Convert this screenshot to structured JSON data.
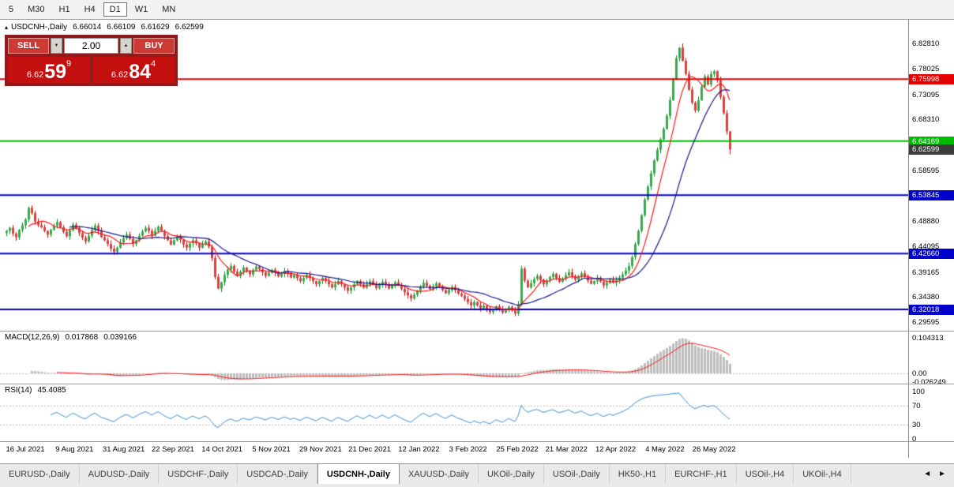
{
  "toolbar": {
    "timeframes": [
      {
        "label": "5",
        "active": false
      },
      {
        "label": "M30",
        "active": false
      },
      {
        "label": "H1",
        "active": false
      },
      {
        "label": "H4",
        "active": false
      },
      {
        "label": "D1",
        "active": true
      },
      {
        "label": "W1",
        "active": false
      },
      {
        "label": "MN",
        "active": false
      }
    ]
  },
  "chart_info": {
    "collapse_glyph": "▴",
    "symbol": "USDCNH-,Daily",
    "open": "6.66014",
    "high": "6.66109",
    "low": "6.61629",
    "close": "6.62599"
  },
  "trade_panel": {
    "sell_label": "SELL",
    "buy_label": "BUY",
    "volume": "2.00",
    "volume_down_glyph": "▼",
    "volume_up_glyph": "▲",
    "bid_small": "6.62",
    "bid_big": "59",
    "bid_sup": "9",
    "ask_small": "6.62",
    "ask_big": "84",
    "ask_sup": "4"
  },
  "price_axis": {
    "ticks": [
      {
        "label": "6.82810",
        "value": 6.8281
      },
      {
        "label": "6.78025",
        "value": 6.78025
      },
      {
        "label": "6.73095",
        "value": 6.73095
      },
      {
        "label": "6.68310",
        "value": 6.6831
      },
      {
        "label": "6.58595",
        "value": 6.58595
      },
      {
        "label": "6.48880",
        "value": 6.4888
      },
      {
        "label": "6.44095",
        "value": 6.44095
      },
      {
        "label": "6.39165",
        "value": 6.39165
      },
      {
        "label": "6.34380",
        "value": 6.3438
      },
      {
        "label": "6.29595",
        "value": 6.29595
      }
    ],
    "badges": [
      {
        "label": "6.75998",
        "value": 6.75998,
        "color": "#e60000",
        "line": true,
        "line_width": 2
      },
      {
        "label": "6.64169",
        "value": 6.64169,
        "color": "#00bb00",
        "line": true,
        "line_width": 2
      },
      {
        "label": "6.62599",
        "value": 6.62599,
        "color": "#3c3c3c",
        "line": false,
        "line_width": 0
      },
      {
        "label": "6.53845",
        "value": 6.53845,
        "color": "#0000cc",
        "line": true,
        "line_width": 2
      },
      {
        "label": "6.42660",
        "value": 6.4266,
        "color": "#0000cc",
        "line": true,
        "line_width": 2
      },
      {
        "label": "6.32018",
        "value": 6.32018,
        "color": "#0000cc",
        "line": true,
        "line_width": 2
      }
    ]
  },
  "macd": {
    "label": "MACD(12,26,9)",
    "value_macd": "0.017868",
    "value_signal": "0.039166",
    "axis": [
      {
        "label": "0.104313",
        "value": 0.104313
      },
      {
        "label": "0.00",
        "value": 0
      },
      {
        "label": "-0.026249",
        "value": -0.026249
      }
    ]
  },
  "rsi": {
    "label": "RSI(14)",
    "value": "45.4085",
    "axis": [
      {
        "label": "100",
        "value": 100
      },
      {
        "label": "70",
        "value": 70
      },
      {
        "label": "30",
        "value": 30
      },
      {
        "label": "0",
        "value": 0
      }
    ],
    "guides": [
      70,
      30
    ]
  },
  "time_axis": {
    "labels": [
      "16 Jul 2021",
      "9 Aug 2021",
      "31 Aug 2021",
      "22 Sep 2021",
      "14 Oct 2021",
      "5 Nov 2021",
      "29 Nov 2021",
      "21 Dec 2021",
      "12 Jan 2022",
      "3 Feb 2022",
      "25 Feb 2022",
      "21 Mar 2022",
      "12 Apr 2022",
      "4 May 2022",
      "26 May 2022"
    ]
  },
  "tabs": {
    "left_arrow": "◄",
    "right_arrow": "►",
    "items": [
      {
        "label": "EURUSD-,Daily",
        "active": false
      },
      {
        "label": "AUDUSD-,Daily",
        "active": false
      },
      {
        "label": "USDCHF-,Daily",
        "active": false
      },
      {
        "label": "USDCAD-,Daily",
        "active": false
      },
      {
        "label": "USDCNH-,Daily",
        "active": true
      },
      {
        "label": "XAUUSD-,Daily",
        "active": false
      },
      {
        "label": "UKOil-,Daily",
        "active": false
      },
      {
        "label": "USOil-,Daily",
        "active": false
      },
      {
        "label": "HK50-,H1",
        "active": false
      },
      {
        "label": "EURCHF-,H1",
        "active": false
      },
      {
        "label": "USOil-,H4",
        "active": false
      },
      {
        "label": "UKOil-,H4",
        "active": false
      }
    ]
  },
  "colors": {
    "candle_up": "#2fae44",
    "candle_up_border": "#0f7d24",
    "candle_down": "#e23b3b",
    "candle_down_border": "#b01414",
    "ma_fast": "#ff1a1a",
    "ma_slow": "#16168c",
    "macd_hist": "#bdbdbd",
    "macd_signal": "#ff1a1a",
    "rsi_line": "#4090d8",
    "guide_dotted": "#c4c4c4"
  },
  "chart_data": {
    "type": "candlestick",
    "symbol": "USDCNH-",
    "timeframe": "Daily",
    "first_open": 6.466,
    "session_high": 6.8281,
    "session_low": 6.306,
    "ma_fast_period": 8,
    "ma_slow_period": 21,
    "macd_params": [
      12,
      26,
      9
    ],
    "rsi_period": 14,
    "last_candle": {
      "o": 6.66014,
      "h": 6.66109,
      "l": 6.61629,
      "c": 6.62599
    },
    "closes": [
      6.47,
      6.476,
      6.465,
      6.458,
      6.472,
      6.481,
      6.492,
      6.514,
      6.504,
      6.488,
      6.481,
      6.477,
      6.47,
      6.463,
      6.472,
      6.48,
      6.487,
      6.477,
      6.468,
      6.46,
      6.471,
      6.482,
      6.476,
      6.466,
      6.457,
      6.45,
      6.461,
      6.472,
      6.48,
      6.47,
      6.458,
      6.452,
      6.445,
      6.436,
      6.43,
      6.438,
      6.448,
      6.456,
      6.463,
      6.455,
      6.445,
      6.452,
      6.461,
      6.469,
      6.476,
      6.47,
      6.461,
      6.47,
      6.478,
      6.47,
      6.46,
      6.452,
      6.444,
      6.452,
      6.461,
      6.453,
      6.444,
      6.438,
      6.446,
      6.452,
      6.446,
      6.438,
      6.445,
      6.45,
      6.44,
      6.418,
      6.382,
      6.36,
      6.372,
      6.386,
      6.396,
      6.403,
      6.392,
      6.384,
      6.392,
      6.4,
      6.394,
      6.387,
      6.395,
      6.402,
      6.397,
      6.391,
      6.384,
      6.39,
      6.396,
      6.39,
      6.383,
      6.388,
      6.394,
      6.388,
      6.381,
      6.386,
      6.38,
      6.374,
      6.38,
      6.386,
      6.38,
      6.374,
      6.368,
      6.374,
      6.38,
      6.374,
      6.368,
      6.362,
      6.368,
      6.374,
      6.368,
      6.362,
      6.356,
      6.362,
      6.368,
      6.374,
      6.368,
      6.362,
      6.368,
      6.374,
      6.368,
      6.361,
      6.367,
      6.373,
      6.367,
      6.36,
      6.366,
      6.372,
      6.366,
      6.359,
      6.353,
      6.347,
      6.341,
      6.348,
      6.356,
      6.364,
      6.371,
      6.365,
      6.358,
      6.364,
      6.37,
      6.364,
      6.357,
      6.351,
      6.357,
      6.363,
      6.357,
      6.35,
      6.346,
      6.34,
      6.334,
      6.328,
      6.334,
      6.328,
      6.322,
      6.327,
      6.321,
      6.315,
      6.32,
      6.326,
      6.32,
      6.314,
      6.319,
      6.325,
      6.318,
      6.312,
      6.33,
      6.398,
      6.375,
      6.362,
      6.37,
      6.378,
      6.384,
      6.376,
      6.368,
      6.375,
      6.382,
      6.388,
      6.38,
      6.373,
      6.379,
      6.385,
      6.391,
      6.384,
      6.377,
      6.383,
      6.389,
      6.382,
      6.375,
      6.369,
      6.374,
      6.38,
      6.373,
      6.366,
      6.371,
      6.377,
      6.371,
      6.376,
      6.381,
      6.387,
      6.394,
      6.403,
      6.42,
      6.445,
      6.47,
      6.5,
      6.53,
      6.555,
      6.58,
      6.605,
      6.625,
      6.645,
      6.665,
      6.69,
      6.72,
      6.76,
      6.8,
      6.82,
      6.795,
      6.77,
      6.74,
      6.715,
      6.7,
      6.72,
      6.745,
      6.765,
      6.75,
      6.77,
      6.775,
      6.758,
      6.726,
      6.695,
      6.66,
      6.62599
    ]
  }
}
